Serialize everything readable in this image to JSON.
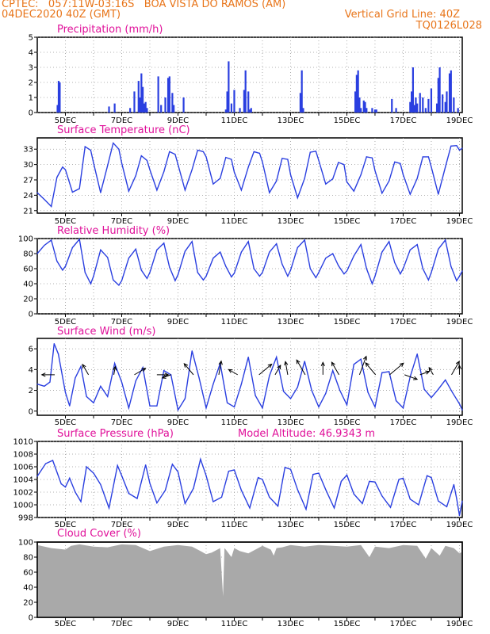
{
  "header": {
    "line1": "CPTEC:   057:11W-03:16S   BOA VISTA DO RAMOS (AM)",
    "line2": "04DEC2020 40Z (GMT)",
    "right1": "Vertical Grid Line: 40Z",
    "right2": "TQ0126L028"
  },
  "annotation_altitude": "Model Altitude: 46.9343 m",
  "x_ticks": [
    "5DEC",
    "7DEC",
    "9DEC",
    "11DEC",
    "13DEC",
    "15DEC",
    "17DEC",
    "19DEC"
  ],
  "colors": {
    "line": "#2a3fe0",
    "bar": "#2a3fe0",
    "cloud": "#a9a9a9",
    "title": "#e0119a",
    "header": "#e8751a"
  },
  "chart_data": [
    {
      "id": "precip",
      "type": "bar",
      "title": "Precipitation (mm/h)",
      "x_unit": "days since 04DEC2020 00Z",
      "xlim": [
        0,
        15.1
      ],
      "ylim": [
        0,
        5
      ],
      "yticks": [
        0,
        1,
        2,
        3,
        4,
        5
      ],
      "x": [
        0.72,
        0.76,
        0.8,
        2.55,
        2.75,
        3.3,
        3.45,
        3.6,
        3.65,
        3.7,
        3.75,
        3.8,
        3.85,
        3.9,
        4.3,
        4.4,
        4.55,
        4.65,
        4.7,
        4.8,
        4.85,
        5.2,
        6.7,
        6.75,
        6.8,
        6.9,
        7.0,
        7.2,
        7.35,
        7.4,
        7.5,
        7.55,
        7.6,
        9.35,
        9.4,
        9.45,
        11.3,
        11.35,
        11.4,
        11.45,
        11.5,
        11.6,
        11.65,
        11.7,
        11.9,
        12.0,
        12.05,
        12.6,
        12.75,
        13.25,
        13.3,
        13.35,
        13.4,
        13.45,
        13.5,
        13.6,
        13.7,
        13.8,
        13.9,
        14.0,
        14.2,
        14.25,
        14.3,
        14.4,
        14.5,
        14.55,
        14.65,
        14.7,
        14.8,
        14.95
      ],
      "values": [
        0.5,
        2.1,
        2.0,
        0.4,
        0.6,
        0.3,
        1.4,
        2.1,
        1.0,
        2.6,
        1.7,
        0.6,
        0.7,
        0.3,
        2.4,
        0.5,
        1.0,
        2.3,
        2.4,
        1.3,
        0.5,
        1.0,
        0.2,
        1.4,
        3.4,
        0.6,
        1.5,
        0.3,
        1.5,
        2.8,
        1.4,
        0.2,
        0.3,
        1.3,
        2.8,
        0.3,
        1.4,
        2.5,
        2.8,
        1.0,
        0.3,
        0.8,
        0.7,
        0.3,
        0.3,
        0.2,
        0.2,
        0.9,
        0.3,
        0.7,
        1.4,
        3.0,
        0.5,
        1.0,
        0.6,
        1.3,
        1.0,
        0.3,
        0.9,
        1.6,
        0.6,
        2.3,
        3.0,
        1.2,
        0.7,
        1.4,
        2.6,
        2.8,
        1.0,
        0.3
      ]
    },
    {
      "id": "temp",
      "type": "line",
      "title": "Surface Temperature (nC)",
      "xlim": [
        0,
        15.1
      ],
      "ylim": [
        20.5,
        35.2
      ],
      "yticks": [
        21,
        24,
        27,
        30,
        33
      ],
      "x": [
        0.0,
        0.25,
        0.5,
        0.7,
        0.9,
        1.0,
        1.25,
        1.5,
        1.7,
        1.9,
        2.0,
        2.25,
        2.5,
        2.7,
        2.9,
        3.0,
        3.25,
        3.5,
        3.7,
        3.9,
        4.0,
        4.25,
        4.5,
        4.7,
        4.9,
        5.0,
        5.25,
        5.5,
        5.7,
        5.9,
        6.0,
        6.25,
        6.5,
        6.7,
        6.9,
        7.0,
        7.25,
        7.5,
        7.7,
        7.9,
        8.0,
        8.25,
        8.5,
        8.7,
        8.9,
        9.0,
        9.25,
        9.5,
        9.7,
        9.9,
        10.0,
        10.25,
        10.5,
        10.7,
        10.9,
        11.0,
        11.25,
        11.5,
        11.7,
        11.9,
        12.0,
        12.25,
        12.5,
        12.7,
        12.9,
        13.0,
        13.25,
        13.5,
        13.7,
        13.9,
        14.0,
        14.25,
        14.5,
        14.7,
        14.9,
        15.0,
        15.1
      ],
      "values": [
        24.5,
        23.2,
        21.8,
        27.5,
        29.5,
        29.0,
        24.6,
        25.3,
        33.5,
        32.8,
        30.3,
        24.5,
        29.8,
        34.2,
        33.0,
        30.3,
        24.8,
        27.8,
        31.7,
        30.8,
        29.0,
        25.0,
        28.6,
        32.5,
        32.0,
        30.0,
        25.0,
        29.0,
        32.8,
        32.5,
        31.5,
        26.2,
        27.3,
        31.4,
        31.0,
        28.5,
        25.0,
        29.5,
        32.5,
        32.2,
        30.5,
        24.5,
        26.8,
        31.2,
        31.0,
        28.0,
        23.5,
        27.3,
        32.4,
        32.6,
        30.8,
        26.2,
        27.2,
        30.4,
        30.0,
        26.6,
        24.8,
        28.0,
        31.5,
        31.3,
        28.8,
        24.4,
        26.8,
        30.5,
        30.2,
        28.0,
        24.2,
        27.3,
        31.5,
        31.5,
        29.5,
        24.2,
        29.5,
        33.6,
        33.7,
        32.8,
        33.2
      ]
    },
    {
      "id": "rh",
      "type": "line",
      "title": "Relative Humidity (%)",
      "xlim": [
        0,
        15.1
      ],
      "ylim": [
        0,
        100
      ],
      "yticks": [
        0,
        20,
        40,
        60,
        80,
        100
      ],
      "x": [
        0.0,
        0.25,
        0.5,
        0.7,
        0.9,
        1.0,
        1.25,
        1.5,
        1.7,
        1.9,
        2.0,
        2.25,
        2.5,
        2.7,
        2.9,
        3.0,
        3.25,
        3.5,
        3.7,
        3.9,
        4.0,
        4.25,
        4.5,
        4.7,
        4.9,
        5.0,
        5.25,
        5.5,
        5.7,
        5.9,
        6.0,
        6.25,
        6.5,
        6.7,
        6.9,
        7.0,
        7.25,
        7.5,
        7.7,
        7.9,
        8.0,
        8.25,
        8.5,
        8.7,
        8.9,
        9.0,
        9.25,
        9.5,
        9.7,
        9.9,
        10.0,
        10.25,
        10.5,
        10.7,
        10.9,
        11.0,
        11.25,
        11.5,
        11.7,
        11.9,
        12.0,
        12.25,
        12.5,
        12.7,
        12.9,
        13.0,
        13.25,
        13.5,
        13.7,
        13.9,
        14.0,
        14.25,
        14.5,
        14.7,
        14.9,
        15.0,
        15.1
      ],
      "values": [
        80,
        91,
        98,
        70,
        58,
        63,
        88,
        99,
        55,
        40,
        50,
        85,
        75,
        45,
        38,
        44,
        74,
        86,
        58,
        47,
        55,
        85,
        94,
        62,
        44,
        52,
        83,
        96,
        55,
        45,
        50,
        74,
        82,
        63,
        49,
        54,
        82,
        96,
        60,
        50,
        55,
        82,
        93,
        66,
        50,
        58,
        88,
        98,
        60,
        48,
        55,
        74,
        80,
        64,
        53,
        57,
        77,
        92,
        60,
        40,
        50,
        82,
        96,
        68,
        53,
        60,
        85,
        92,
        60,
        45,
        55,
        86,
        98,
        63,
        44,
        50,
        57
      ]
    },
    {
      "id": "wind",
      "type": "line",
      "title": "Surface Wind (m/s)",
      "xlim": [
        0,
        15.1
      ],
      "ylim": [
        -0.4,
        7.0
      ],
      "yticks": [
        0,
        2,
        4,
        6
      ],
      "x": [
        0.0,
        0.25,
        0.45,
        0.6,
        0.75,
        1.0,
        1.15,
        1.35,
        1.55,
        1.75,
        2.0,
        2.25,
        2.5,
        2.75,
        3.0,
        3.25,
        3.5,
        3.75,
        4.0,
        4.25,
        4.5,
        4.75,
        5.0,
        5.25,
        5.5,
        5.75,
        6.0,
        6.25,
        6.5,
        6.75,
        7.0,
        7.25,
        7.5,
        7.75,
        8.0,
        8.25,
        8.5,
        8.75,
        9.0,
        9.25,
        9.5,
        9.75,
        10.0,
        10.25,
        10.5,
        10.75,
        11.0,
        11.25,
        11.5,
        11.75,
        12.0,
        12.25,
        12.5,
        12.75,
        13.0,
        13.25,
        13.5,
        13.75,
        14.0,
        14.25,
        14.5,
        14.75,
        15.0,
        15.1
      ],
      "values": [
        2.6,
        2.4,
        2.8,
        6.5,
        5.5,
        1.8,
        0.5,
        3.2,
        4.3,
        1.4,
        0.8,
        2.4,
        1.4,
        4.6,
        2.8,
        0.3,
        2.9,
        4.2,
        0.5,
        0.5,
        3.9,
        3.5,
        0.1,
        1.2,
        5.8,
        3.2,
        0.3,
        2.6,
        4.6,
        0.8,
        0.4,
        2.6,
        5.2,
        1.5,
        0.3,
        3.4,
        5.2,
        1.9,
        1.2,
        2.3,
        4.8,
        2.0,
        0.4,
        1.7,
        3.9,
        2.0,
        0.6,
        4.5,
        5.0,
        1.8,
        0.4,
        3.7,
        3.8,
        1.0,
        0.3,
        3.3,
        5.5,
        2.1,
        1.3,
        2.1,
        3.0,
        1.8,
        0.7,
        0.1
      ],
      "barbs_x": [
        0.62,
        1.82,
        2.72,
        3.45,
        4.25,
        4.75,
        5.55,
        6.45,
        7.12,
        7.88,
        8.45,
        8.9,
        9.52,
        10.15,
        10.72,
        11.45,
        12.02,
        12.52,
        13.05,
        13.6,
        14.07,
        14.72,
        15.0
      ],
      "barbs_len": [
        2.5,
        2.3,
        1.6,
        2.5,
        2.2,
        1.8,
        2.8,
        2.7,
        2.0,
        3.2,
        2.1,
        2.6,
        3.3,
        2.4,
        2.8,
        3.8,
        3.0,
        3.5,
        2.6,
        1.9,
        1.6,
        3.0,
        1.8
      ],
      "barbs_angle_deg": [
        180,
        120,
        80,
        30,
        0,
        200,
        130,
        80,
        150,
        40,
        60,
        100,
        120,
        90,
        120,
        70,
        130,
        40,
        -20,
        20,
        120,
        60,
        90
      ]
    },
    {
      "id": "pres",
      "type": "line",
      "title": "Surface Pressure (hPa)",
      "xlim": [
        0,
        15.1
      ],
      "ylim": [
        998,
        1010
      ],
      "yticks": [
        998,
        1000,
        1002,
        1004,
        1006,
        1008,
        1010
      ],
      "x": [
        0.0,
        0.3,
        0.55,
        0.85,
        1.0,
        1.15,
        1.35,
        1.55,
        1.75,
        2.0,
        2.25,
        2.55,
        2.85,
        3.0,
        3.25,
        3.55,
        3.85,
        4.0,
        4.25,
        4.55,
        4.8,
        5.0,
        5.25,
        5.55,
        5.8,
        6.0,
        6.25,
        6.55,
        6.8,
        7.0,
        7.25,
        7.55,
        7.85,
        8.0,
        8.25,
        8.55,
        8.8,
        9.0,
        9.25,
        9.55,
        9.8,
        10.0,
        10.25,
        10.55,
        10.8,
        11.0,
        11.25,
        11.55,
        11.8,
        12.0,
        12.25,
        12.55,
        12.85,
        13.0,
        13.25,
        13.55,
        13.85,
        14.0,
        14.25,
        14.55,
        14.8,
        14.9,
        15.0,
        15.1
      ],
      "values": [
        1004.5,
        1006.5,
        1007.0,
        1003.3,
        1002.8,
        1004.2,
        1002.0,
        1000.5,
        1006.0,
        1005.0,
        1003.2,
        999.5,
        1006.2,
        1004.6,
        1001.8,
        1001.0,
        1006.3,
        1003.4,
        1000.3,
        1002.3,
        1006.4,
        1005.2,
        1000.2,
        1002.6,
        1007.2,
        1004.6,
        1000.5,
        1001.2,
        1005.3,
        1005.5,
        1002.3,
        999.5,
        1004.3,
        1004.0,
        1001.2,
        999.8,
        1005.9,
        1005.6,
        1002.4,
        999.3,
        1004.8,
        1005.0,
        1002.4,
        999.5,
        1003.7,
        1004.7,
        1001.7,
        1000.2,
        1003.7,
        1003.6,
        1001.4,
        999.6,
        1004.0,
        1004.2,
        1000.9,
        1000.0,
        1004.6,
        1004.3,
        1000.6,
        999.7,
        1003.2,
        1001.0,
        998.3,
        1000.6
      ]
    },
    {
      "id": "cloud",
      "type": "area",
      "title": "Cloud Cover (%)",
      "xlim": [
        0,
        15.1
      ],
      "ylim": [
        0,
        100
      ],
      "yticks": [
        0,
        20,
        40,
        60,
        80,
        100
      ],
      "x": [
        0.0,
        0.5,
        1.0,
        1.2,
        1.5,
        2.0,
        2.5,
        3.0,
        3.5,
        4.0,
        4.5,
        5.0,
        5.5,
        5.8,
        6.0,
        6.2,
        6.5,
        6.6,
        6.65,
        6.7,
        6.9,
        7.0,
        7.2,
        7.5,
        8.0,
        8.3,
        8.4,
        8.5,
        8.7,
        9.0,
        9.5,
        10.0,
        10.5,
        11.0,
        11.5,
        11.8,
        12.0,
        12.5,
        13.0,
        13.5,
        13.8,
        14.0,
        14.3,
        14.5,
        14.8,
        15.0,
        15.1
      ],
      "values": [
        96,
        92,
        90,
        95,
        97,
        94,
        93,
        97,
        96,
        88,
        94,
        96,
        94,
        88,
        84,
        86,
        92,
        28,
        92,
        90,
        80,
        92,
        88,
        85,
        95,
        90,
        82,
        92,
        93,
        96,
        94,
        96,
        95,
        94,
        96,
        80,
        94,
        92,
        96,
        95,
        78,
        92,
        82,
        95,
        92,
        85,
        87
      ]
    }
  ]
}
